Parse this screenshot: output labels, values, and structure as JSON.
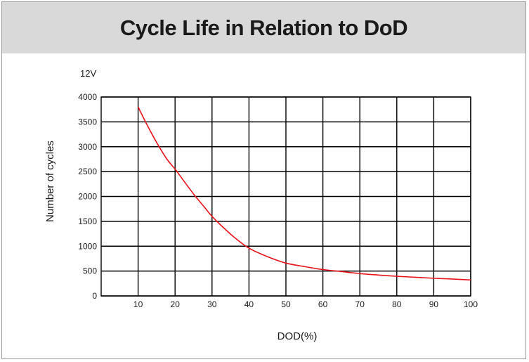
{
  "chart_data": {
    "type": "line",
    "title": "Cycle Life in Relation to DoD",
    "subtitle": "12V",
    "xlabel": "DOD(%)",
    "ylabel": "Number of cycles",
    "xlim": [
      0,
      100
    ],
    "ylim": [
      0,
      4000
    ],
    "xticks": [
      10,
      20,
      30,
      40,
      50,
      60,
      70,
      80,
      90,
      100
    ],
    "yticks": [
      0,
      500,
      1000,
      1500,
      2000,
      2500,
      3000,
      3500,
      4000
    ],
    "grid": true,
    "colors": {
      "line": "#e8131b",
      "grid": "#000000",
      "title_bar": "#d9d9d9"
    },
    "series": [
      {
        "x": [
          10,
          12,
          14,
          16,
          18,
          20,
          22,
          25,
          28,
          30,
          33,
          36,
          40,
          45,
          50,
          55,
          60,
          65,
          70,
          75,
          80,
          85,
          90,
          95,
          100
        ],
        "y": [
          3800,
          3500,
          3220,
          2960,
          2730,
          2550,
          2350,
          2050,
          1780,
          1600,
          1380,
          1180,
          960,
          790,
          660,
          590,
          530,
          490,
          450,
          420,
          395,
          375,
          355,
          340,
          320
        ]
      }
    ]
  }
}
